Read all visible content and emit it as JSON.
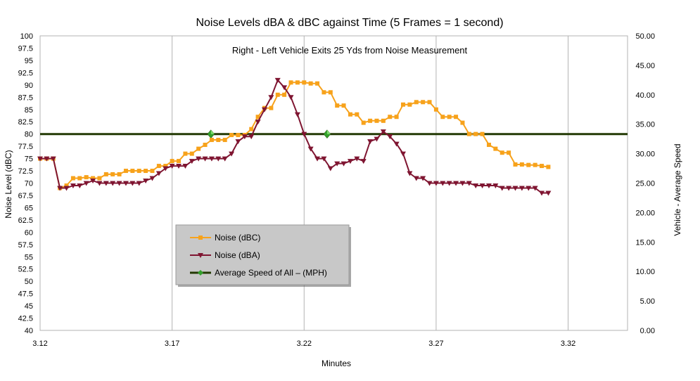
{
  "chart_data": {
    "type": "line",
    "title": "Noise Levels dBA & dBC against Time (5 Frames = 1 second)",
    "subtitle": "Right - Left Vehicle Exits 25 Yds from Noise Measurement",
    "xlabel": "Minutes",
    "ylabel_left": "Noise Level (dBC)",
    "ylabel_right": "Vehicle - Average Speed",
    "xlim": [
      3.12,
      3.3425
    ],
    "ylim_left": [
      40,
      100
    ],
    "ylim_right": [
      0,
      50
    ],
    "x_ticks": [
      "3.12",
      "3.17",
      "3.22",
      "3.27",
      "3.32"
    ],
    "y_left_ticks": [
      "100",
      "97.5",
      "95",
      "92.5",
      "90",
      "87.5",
      "85",
      "82.5",
      "80",
      "77.5",
      "75",
      "72.5",
      "70",
      "67.5",
      "65",
      "62.5",
      "60",
      "57.5",
      "55",
      "52.5",
      "50",
      "47.5",
      "45",
      "42.5",
      "40"
    ],
    "y_right_ticks": [
      "50.00",
      "45.00",
      "40.00",
      "35.00",
      "30.00",
      "25.00",
      "20.00",
      "15.00",
      "10.00",
      "5.00",
      "0.00"
    ],
    "grid": "vertical",
    "legend_position": "center-left",
    "series": [
      {
        "name": "Noise  (dBC)",
        "color": "#f7a21b",
        "marker": "square",
        "axis": "left",
        "x_start": 3.12,
        "x_step": 0.0025,
        "values": [
          75,
          75,
          75,
          69,
          69.5,
          71,
          71,
          71.2,
          71,
          71,
          71.8,
          71.8,
          71.8,
          72.5,
          72.5,
          72.5,
          72.5,
          72.5,
          73.5,
          73.5,
          74.5,
          74.5,
          76,
          76,
          77,
          77.8,
          78.8,
          78.8,
          78.8,
          79.8,
          79.8,
          79.8,
          81,
          83.5,
          85.3,
          85.3,
          88,
          88,
          90.5,
          90.5,
          90.5,
          90.3,
          90.3,
          88.5,
          88.5,
          85.8,
          85.8,
          84,
          84,
          82.3,
          82.7,
          82.7,
          82.7,
          83.5,
          83.5,
          86,
          86,
          86.5,
          86.5,
          86.5,
          85,
          83.5,
          83.5,
          83.5,
          82.3,
          80,
          80,
          80,
          77.8,
          77,
          76.2,
          76.2,
          73.8,
          73.8,
          73.7,
          73.7,
          73.5,
          73.3
        ]
      },
      {
        "name": "Noise  (dBA)",
        "color": "#7f1531",
        "marker": "triangle-down",
        "axis": "left",
        "x_start": 3.12,
        "x_step": 0.0025,
        "values": [
          75,
          75,
          75,
          69,
          69,
          69.5,
          69.5,
          70,
          70.5,
          70,
          70,
          70,
          70,
          70,
          70,
          70,
          70.5,
          71,
          72,
          73,
          73.5,
          73.5,
          73.5,
          74.5,
          75,
          75,
          75,
          75,
          75,
          76,
          78.5,
          79.5,
          79.5,
          82.5,
          85,
          87.5,
          91,
          89.5,
          87.5,
          84,
          80,
          77,
          75,
          75,
          73,
          74,
          74,
          74.5,
          75,
          74.5,
          78.5,
          79,
          80.5,
          79.5,
          78,
          76,
          72,
          71,
          71,
          70,
          70,
          70,
          70,
          70,
          70,
          70,
          69.5,
          69.5,
          69.5,
          69.5,
          69,
          69,
          69,
          69,
          69,
          69,
          68,
          68
        ]
      },
      {
        "name": "Average Speed of All – (MPH)",
        "color": "#243a05",
        "marker": "diamond",
        "axis": "right",
        "x": [
          3.12,
          3.3425
        ],
        "values": [
          33.33,
          33.33
        ],
        "marker_x": [
          3.1847,
          3.2287
        ]
      }
    ]
  }
}
